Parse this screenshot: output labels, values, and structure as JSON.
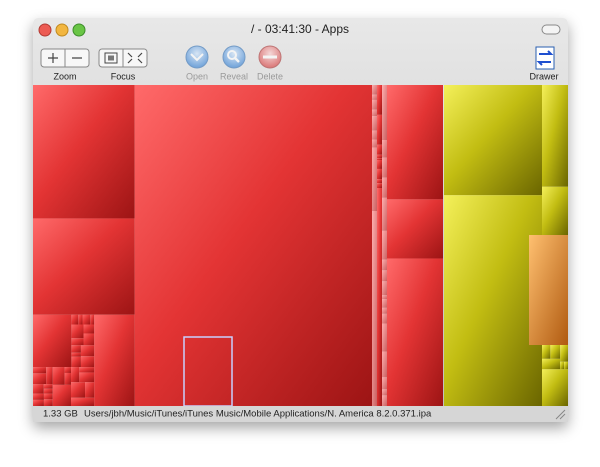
{
  "window": {
    "title": "/ - 03:41:30 - Apps"
  },
  "toolbar": {
    "zoom": "Zoom",
    "focus": "Focus",
    "open": "Open",
    "reveal": "Reveal",
    "delete": "Delete",
    "drawer": "Drawer"
  },
  "status": {
    "size": "1.33 GB",
    "path": "Users/jbh/Music/iTunes/iTunes Music/Mobile Applications/N. America 8.2.0.371.ipa"
  }
}
